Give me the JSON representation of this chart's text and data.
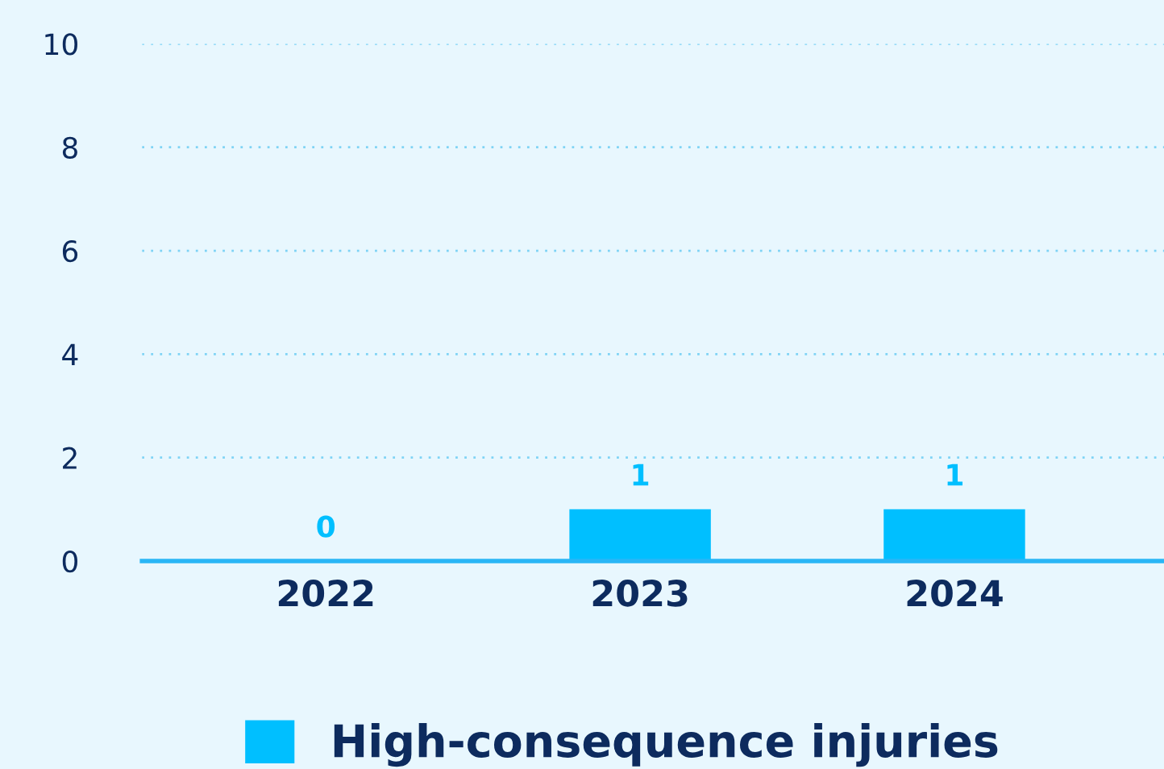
{
  "chart_data": {
    "type": "bar",
    "categories": [
      "2022",
      "2023",
      "2024"
    ],
    "series": [
      {
        "name": "High-consequence injuries",
        "color": "#00bfff",
        "values": [
          0,
          1,
          1
        ]
      }
    ],
    "ylim": [
      0,
      10
    ],
    "yticks": [
      0,
      2,
      4,
      6,
      8,
      10
    ],
    "grid": "y",
    "legend": "bottom",
    "data_labels": true
  }
}
